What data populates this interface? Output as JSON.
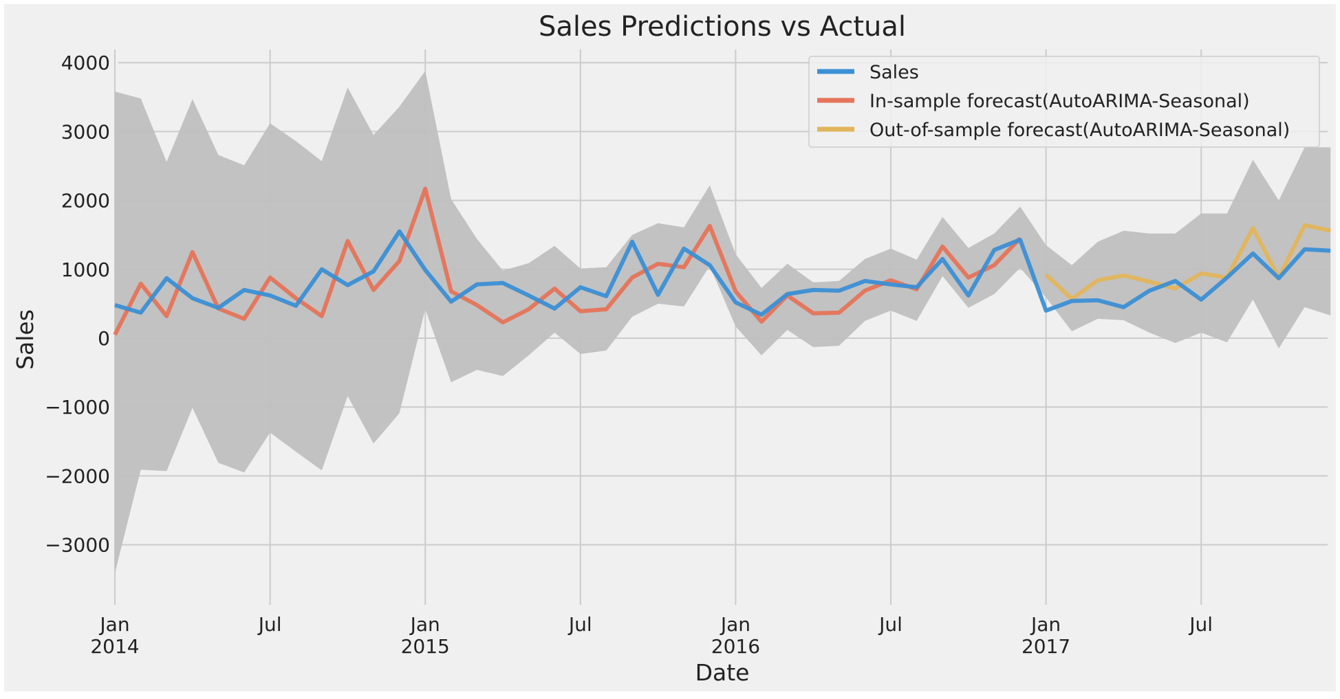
{
  "chart_data": {
    "type": "line",
    "title": "Sales Predictions vs Actual",
    "xlabel": "Date",
    "ylabel": "Sales",
    "xlim": [
      "2014-01",
      "2017-12"
    ],
    "ylim": [
      -3700,
      4200
    ],
    "y_ticks": [
      -3000,
      -2000,
      -1000,
      0,
      1000,
      2000,
      3000,
      4000
    ],
    "y_tick_labels": [
      "−3000",
      "−2000",
      "−1000",
      "0",
      "1000",
      "2000",
      "3000",
      "4000"
    ],
    "x_ticks": [
      {
        "date": "2014-01",
        "label": "Jan",
        "year": "2014"
      },
      {
        "date": "2014-07",
        "label": "Jul",
        "year": ""
      },
      {
        "date": "2015-01",
        "label": "Jan",
        "year": "2015"
      },
      {
        "date": "2015-07",
        "label": "Jul",
        "year": ""
      },
      {
        "date": "2016-01",
        "label": "Jan",
        "year": "2016"
      },
      {
        "date": "2016-07",
        "label": "Jul",
        "year": ""
      },
      {
        "date": "2017-01",
        "label": "Jan",
        "year": "2017"
      },
      {
        "date": "2017-07",
        "label": "Jul",
        "year": ""
      }
    ],
    "grid": true,
    "legend_position": "top-right",
    "colors": {
      "background": "#f0f0f0",
      "grid": "#cbcbcb",
      "band": "#bfbfbf",
      "sales": "#3b8fd5",
      "in_sample": "#e5745a",
      "out_sample": "#e2b55c"
    },
    "series": [
      {
        "name": "Sales",
        "color_key": "sales",
        "x": [
          "2014-01",
          "2014-02",
          "2014-03",
          "2014-04",
          "2014-05",
          "2014-06",
          "2014-07",
          "2014-08",
          "2014-09",
          "2014-10",
          "2014-11",
          "2014-12",
          "2015-01",
          "2015-02",
          "2015-03",
          "2015-04",
          "2015-05",
          "2015-06",
          "2015-07",
          "2015-08",
          "2015-09",
          "2015-10",
          "2015-11",
          "2015-12",
          "2016-01",
          "2016-02",
          "2016-03",
          "2016-04",
          "2016-05",
          "2016-06",
          "2016-07",
          "2016-08",
          "2016-09",
          "2016-10",
          "2016-11",
          "2016-12",
          "2017-01",
          "2017-02",
          "2017-03",
          "2017-04",
          "2017-05",
          "2017-06",
          "2017-07",
          "2017-08",
          "2017-09",
          "2017-10",
          "2017-11",
          "2017-12"
        ],
        "values": [
          480,
          370,
          870,
          580,
          440,
          700,
          620,
          470,
          1000,
          770,
          970,
          1550,
          990,
          530,
          780,
          800,
          620,
          430,
          740,
          610,
          1400,
          630,
          1300,
          1060,
          520,
          340,
          640,
          700,
          690,
          830,
          780,
          740,
          1150,
          620,
          1280,
          1430,
          400,
          540,
          550,
          450,
          690,
          830,
          560,
          880,
          1230,
          870,
          1290,
          1270
        ]
      },
      {
        "name": "In-sample forecast(AutoARIMA-Seasonal)",
        "color_key": "in_sample",
        "x": [
          "2014-01",
          "2014-02",
          "2014-03",
          "2014-04",
          "2014-05",
          "2014-06",
          "2014-07",
          "2014-08",
          "2014-09",
          "2014-10",
          "2014-11",
          "2014-12",
          "2015-01",
          "2015-02",
          "2015-03",
          "2015-04",
          "2015-05",
          "2015-06",
          "2015-07",
          "2015-08",
          "2015-09",
          "2015-10",
          "2015-11",
          "2015-12",
          "2016-01",
          "2016-02",
          "2016-03",
          "2016-04",
          "2016-05",
          "2016-06",
          "2016-07",
          "2016-08",
          "2016-09",
          "2016-10",
          "2016-11",
          "2016-12"
        ],
        "values": [
          50,
          790,
          320,
          1250,
          430,
          280,
          880,
          580,
          320,
          1410,
          700,
          1120,
          2170,
          680,
          480,
          230,
          420,
          720,
          390,
          420,
          880,
          1080,
          1030,
          1630,
          680,
          240,
          620,
          360,
          370,
          690,
          840,
          710,
          1330,
          880,
          1060,
          1450
        ]
      },
      {
        "name": "Out-of-sample forecast(AutoARIMA-Seasonal)",
        "color_key": "out_sample",
        "x": [
          "2017-01",
          "2017-02",
          "2017-03",
          "2017-04",
          "2017-05",
          "2017-06",
          "2017-07",
          "2017-08",
          "2017-09",
          "2017-10",
          "2017-11",
          "2017-12"
        ],
        "values": [
          920,
          570,
          840,
          910,
          820,
          720,
          940,
          880,
          1600,
          880,
          1640,
          1560
        ]
      }
    ],
    "confidence_band": {
      "x": [
        "2014-01",
        "2014-02",
        "2014-03",
        "2014-04",
        "2014-05",
        "2014-06",
        "2014-07",
        "2014-08",
        "2014-09",
        "2014-10",
        "2014-11",
        "2014-12",
        "2015-01",
        "2015-02",
        "2015-03",
        "2015-04",
        "2015-05",
        "2015-06",
        "2015-07",
        "2015-08",
        "2015-09",
        "2015-10",
        "2015-11",
        "2015-12",
        "2016-01",
        "2016-02",
        "2016-03",
        "2016-04",
        "2016-05",
        "2016-06",
        "2016-07",
        "2016-08",
        "2016-09",
        "2016-10",
        "2016-11",
        "2016-12",
        "2017-01",
        "2017-02",
        "2017-03",
        "2017-04",
        "2017-05",
        "2017-06",
        "2017-07",
        "2017-08",
        "2017-09",
        "2017-10",
        "2017-11",
        "2017-12"
      ],
      "upper": [
        3580,
        3480,
        2560,
        3470,
        2660,
        2510,
        3120,
        2860,
        2570,
        3640,
        2950,
        3360,
        3880,
        2020,
        1440,
        980,
        1090,
        1340,
        1010,
        1030,
        1500,
        1670,
        1610,
        2220,
        1220,
        730,
        1080,
        810,
        830,
        1150,
        1300,
        1140,
        1760,
        1310,
        1520,
        1910,
        1350,
        1060,
        1400,
        1560,
        1520,
        1520,
        1810,
        1810,
        2590,
        2000,
        2770,
        2770
      ],
      "lower": [
        -3410,
        -1910,
        -1930,
        -1010,
        -1810,
        -1950,
        -1370,
        -1650,
        -1920,
        -840,
        -1530,
        -1090,
        420,
        -640,
        -460,
        -550,
        -250,
        80,
        -230,
        -180,
        310,
        500,
        460,
        1050,
        170,
        -250,
        120,
        -130,
        -110,
        250,
        400,
        250,
        900,
        440,
        640,
        1020,
        590,
        100,
        280,
        260,
        80,
        -70,
        80,
        -60,
        560,
        -150,
        450,
        330
      ]
    }
  }
}
